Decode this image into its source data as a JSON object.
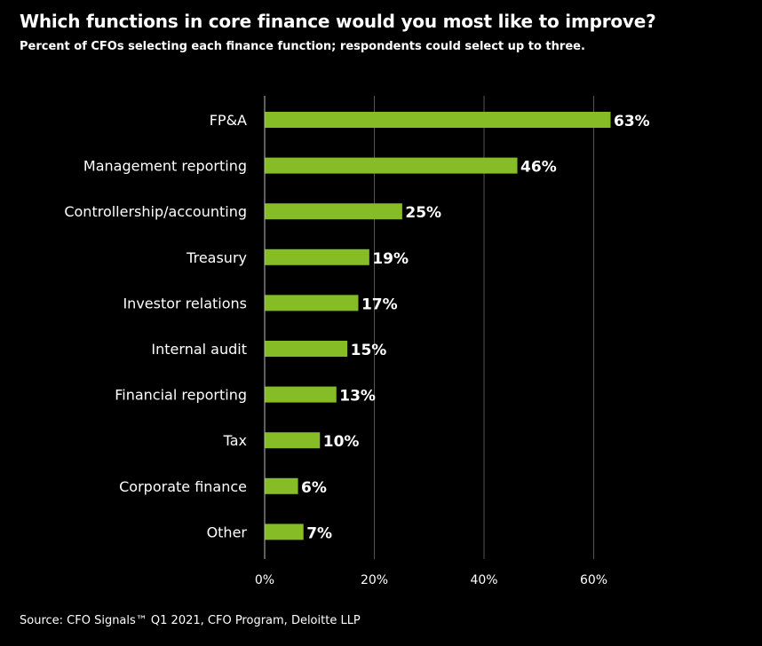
{
  "chart_data": {
    "type": "bar",
    "orientation": "horizontal",
    "title": "Which functions in core finance would you most like to improve?",
    "subtitle": "Percent of CFOs selecting each finance function; respondents could select up to three.",
    "categories": [
      "FP&A",
      "Management reporting",
      "Controllership/accounting",
      "Treasury",
      "Investor relations",
      "Internal audit",
      "Financial reporting",
      "Tax",
      "Corporate finance",
      "Other"
    ],
    "values": [
      63,
      46,
      25,
      19,
      17,
      15,
      13,
      10,
      6,
      7
    ],
    "value_labels": [
      "63%",
      "46%",
      "25%",
      "19%",
      "17%",
      "15%",
      "13%",
      "10%",
      "6%",
      "7%"
    ],
    "xlim": [
      0,
      70
    ],
    "xticks": [
      0,
      20,
      40,
      60
    ],
    "xtick_labels": [
      "0%",
      "20%",
      "40%",
      "60%"
    ],
    "grid": true,
    "xlabel": "",
    "ylabel": "",
    "bar_color": "#86bc25",
    "grid_color": "#555555",
    "source": "Source: CFO Signals™ Q1 2021, CFO Program, Deloitte LLP"
  }
}
